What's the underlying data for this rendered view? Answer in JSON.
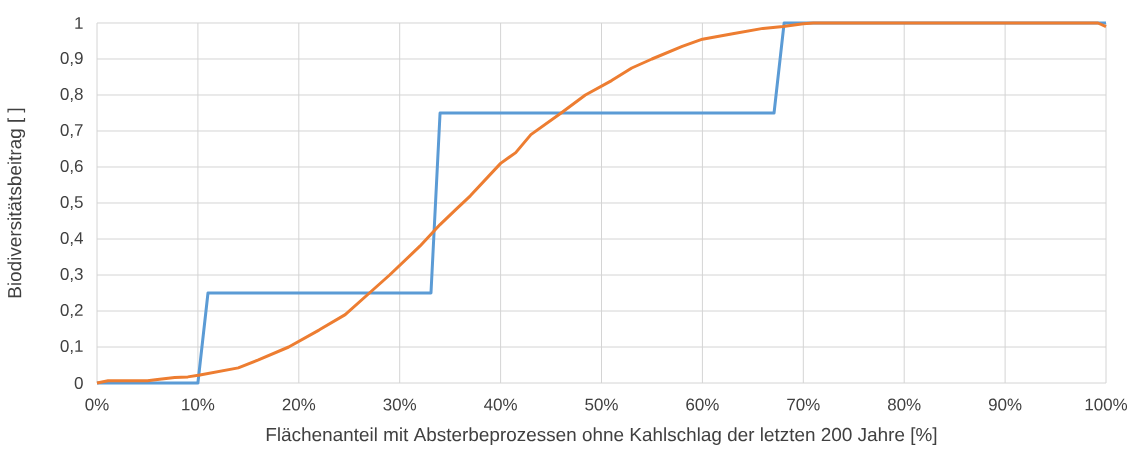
{
  "chart_data": {
    "type": "line",
    "xlabel": "Flächenanteil mit Absterbeprozessen ohne Kahlschlag der letzten 200 Jahre [%]",
    "ylabel": "Biodiversitätsbeitrag  [ ]",
    "xlim": [
      0,
      100
    ],
    "ylim": [
      0,
      1
    ],
    "xticks": [
      {
        "value": 0,
        "label": "0%"
      },
      {
        "value": 10,
        "label": "10%"
      },
      {
        "value": 20,
        "label": "20%"
      },
      {
        "value": 30,
        "label": "30%"
      },
      {
        "value": 40,
        "label": "40%"
      },
      {
        "value": 50,
        "label": "50%"
      },
      {
        "value": 60,
        "label": "60%"
      },
      {
        "value": 70,
        "label": "70%"
      },
      {
        "value": 80,
        "label": "80%"
      },
      {
        "value": 90,
        "label": "90%"
      },
      {
        "value": 100,
        "label": "100%"
      }
    ],
    "yticks": [
      0,
      {
        "value": 0.1,
        "label": "0,1"
      },
      {
        "value": 0.2,
        "label": "0,2"
      },
      {
        "value": 0.3,
        "label": "0,3"
      },
      {
        "value": 0.4,
        "label": "0,4"
      },
      {
        "value": 0.5,
        "label": "0,5"
      },
      {
        "value": 0.6,
        "label": "0,6"
      },
      {
        "value": 0.7,
        "label": "0,7"
      },
      {
        "value": 0.8,
        "label": "0,8"
      },
      {
        "value": 0.9,
        "label": "0,9"
      },
      1
    ],
    "grid": true,
    "marker": "none",
    "line_style": "solid",
    "series": [
      {
        "color": "#5b9bd5",
        "x": [
          0,
          10,
          11,
          33.1,
          34,
          67.1,
          68.1,
          100
        ],
        "values": [
          0,
          0,
          0.25,
          0.25,
          0.75,
          0.75,
          1,
          1
        ]
      },
      {
        "color": "#ed7d31",
        "x": [
          0,
          1.1,
          5,
          6,
          7.7,
          9,
          10.2,
          14,
          16,
          19,
          22,
          24.6,
          27,
          29,
          32,
          34,
          35.5,
          37,
          40,
          41.5,
          43,
          46,
          48.4,
          51,
          53,
          55,
          58,
          60,
          63,
          66,
          68,
          70,
          71,
          99.2,
          100
        ],
        "values": [
          0,
          0.006,
          0.006,
          0.01,
          0.015,
          0.017,
          0.022,
          0.042,
          0.064,
          0.1,
          0.147,
          0.19,
          0.25,
          0.3,
          0.38,
          0.44,
          0.48,
          0.52,
          0.61,
          0.64,
          0.69,
          0.75,
          0.8,
          0.84,
          0.875,
          0.9,
          0.935,
          0.955,
          0.97,
          0.985,
          0.99,
          0.998,
          1,
          1,
          0.99
        ]
      }
    ]
  }
}
